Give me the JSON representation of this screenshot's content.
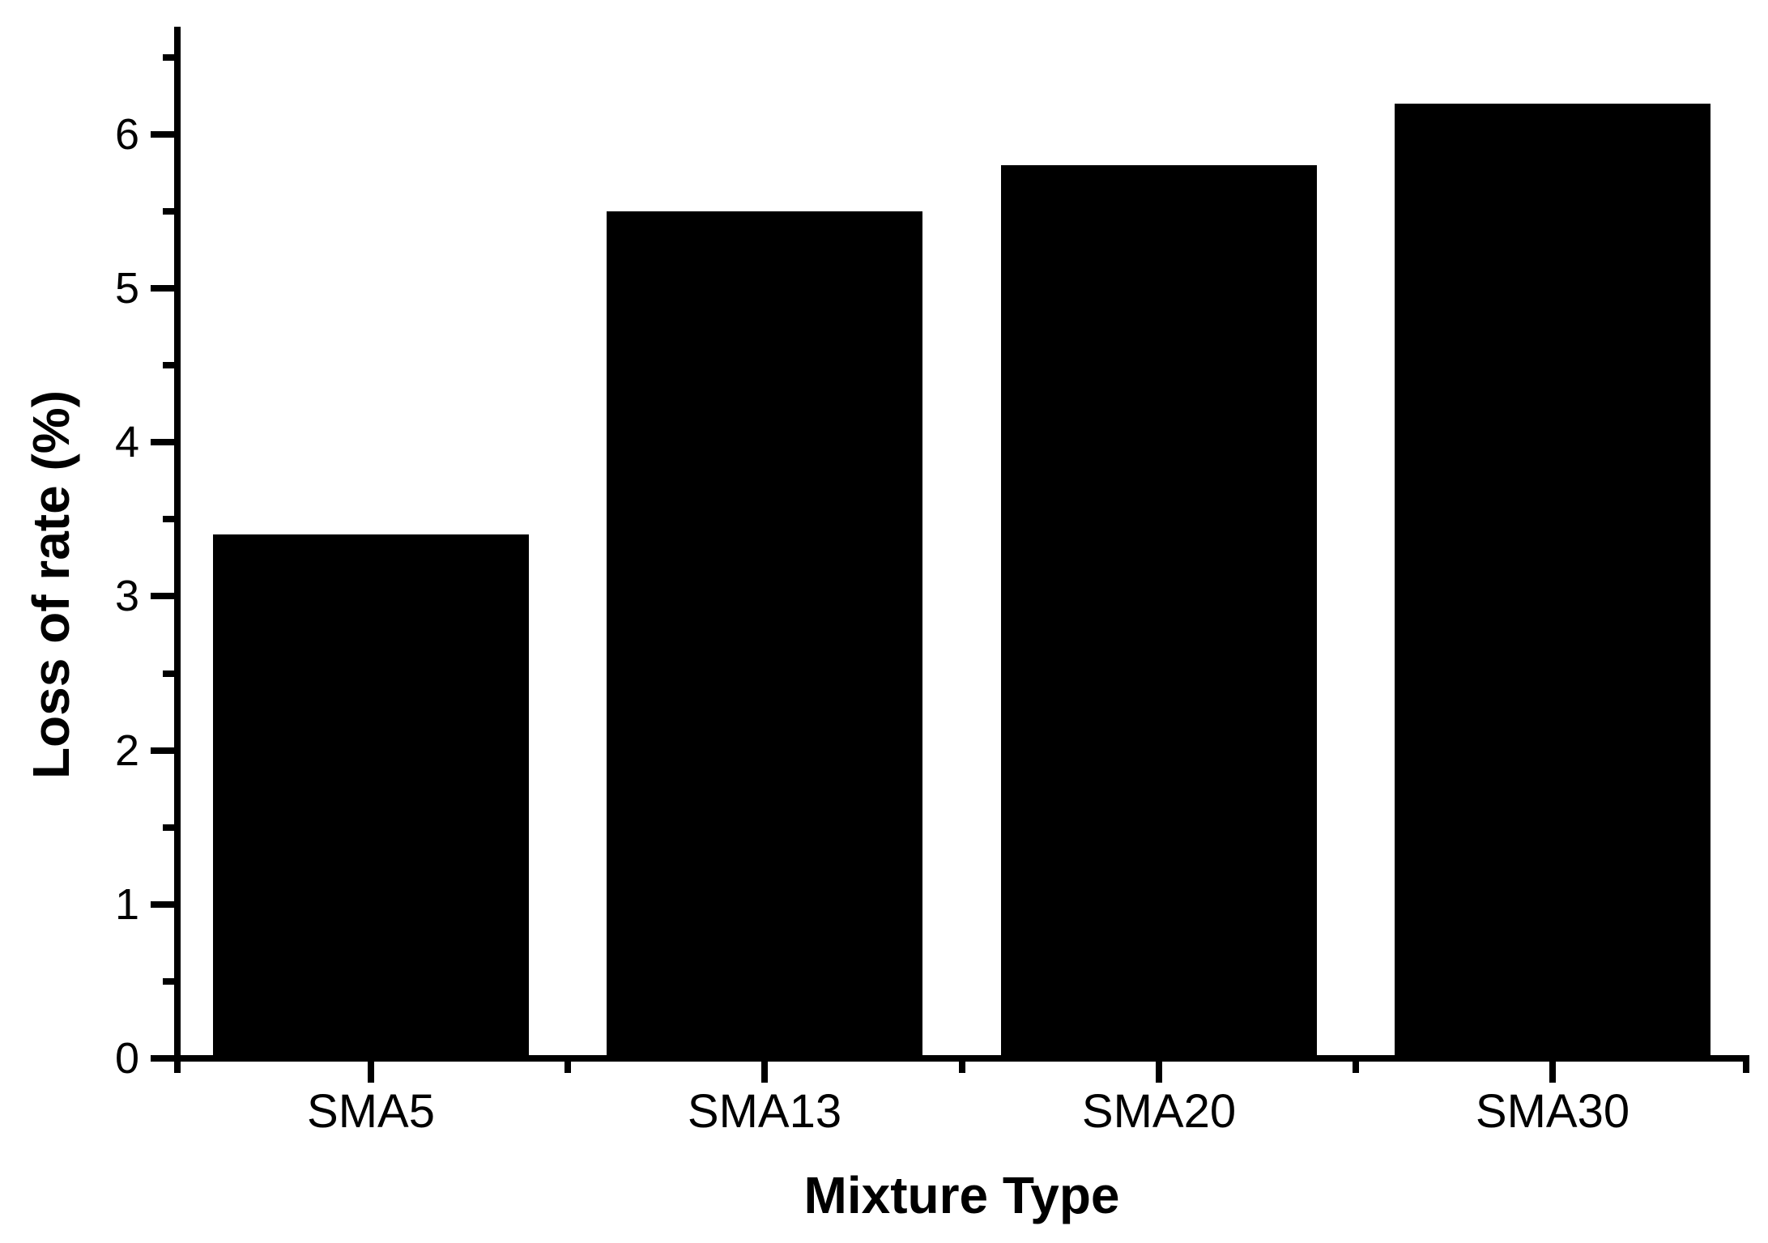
{
  "chart_data": {
    "type": "bar",
    "title": "",
    "categories": [
      "SMA5",
      "SMA13",
      "SMA20",
      "SMA30"
    ],
    "values": [
      3.4,
      5.5,
      5.8,
      6.2
    ],
    "xlabel": "Mixture Type",
    "ylabel": "Loss of rate (%)",
    "ylim": [
      0,
      6.7
    ],
    "y_major_ticks": [
      0,
      1,
      2,
      3,
      4,
      5,
      6
    ],
    "y_minor_ticks": [
      0.5,
      1.5,
      2.5,
      3.5,
      4.5,
      5.5,
      6.5
    ],
    "bar_color": "#000000",
    "axis_color": "#000000",
    "background_color": "#ffffff",
    "grid": false,
    "legend": false
  }
}
